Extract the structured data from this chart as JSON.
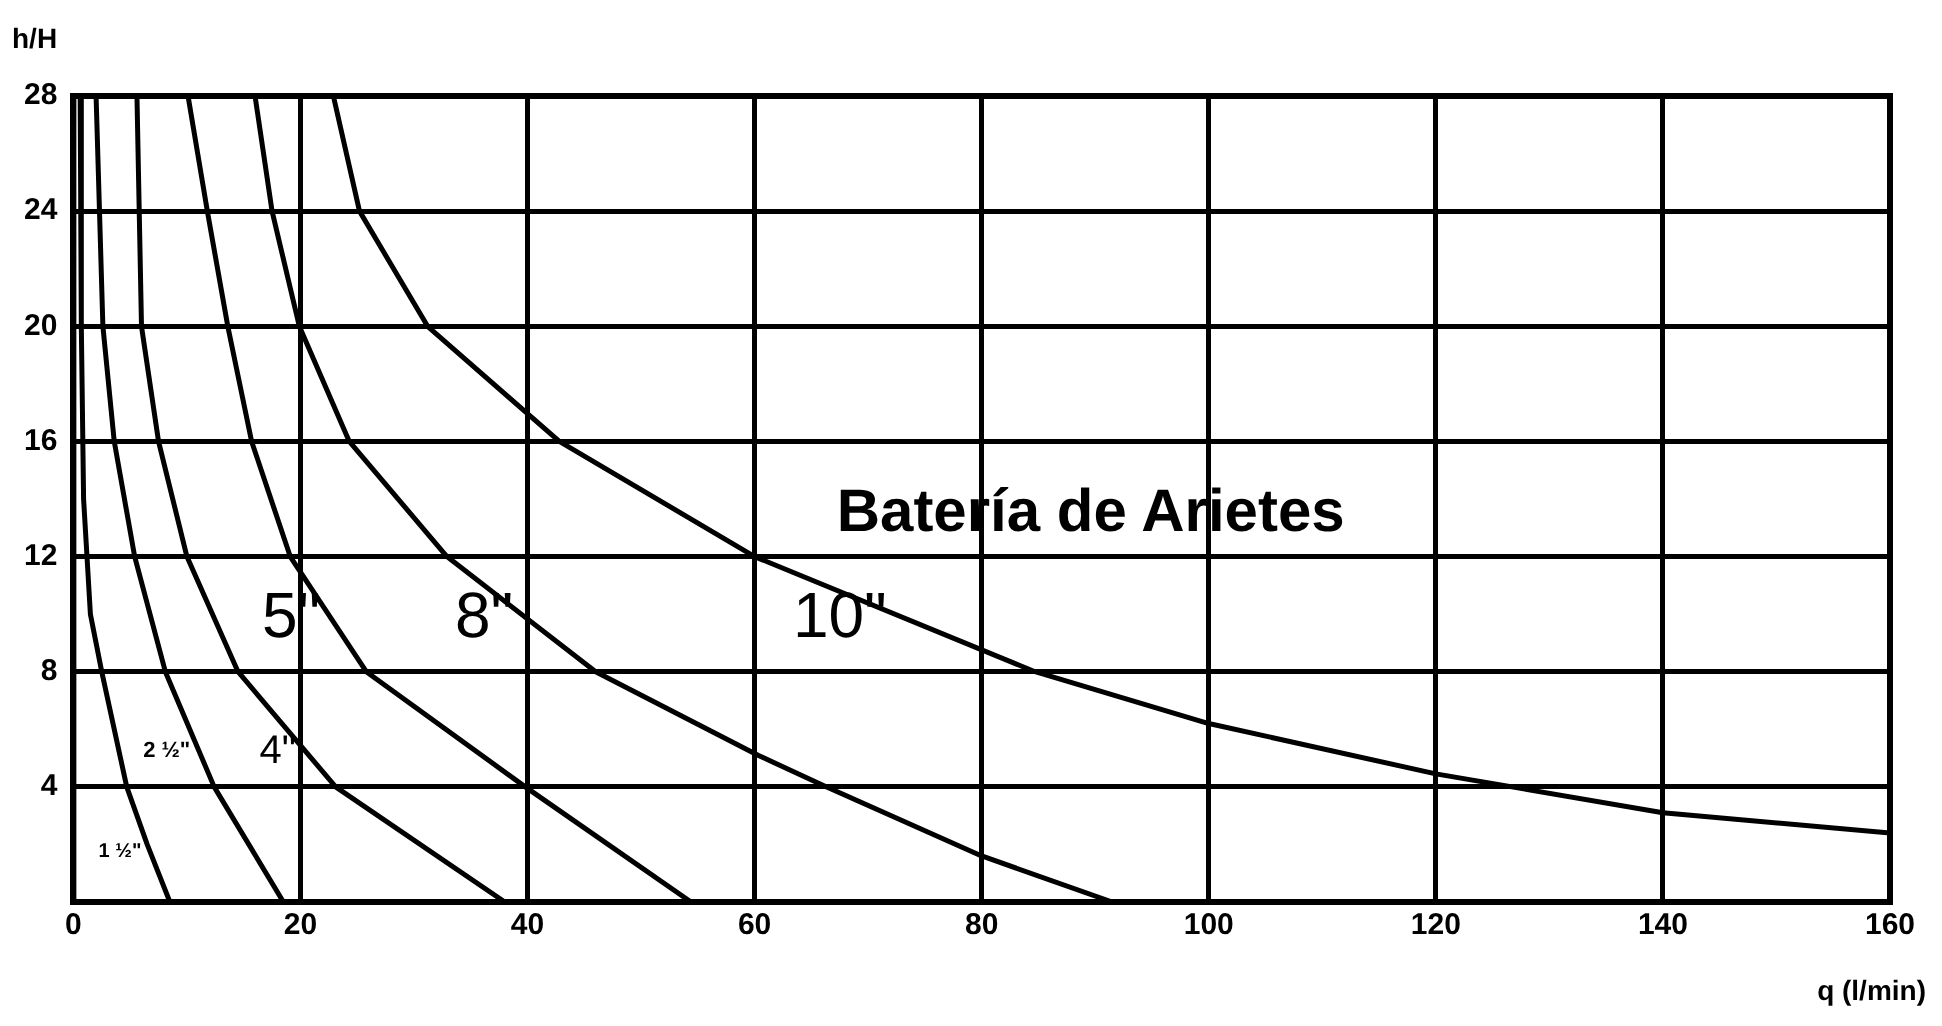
{
  "chart_data": {
    "type": "line",
    "title": "Batería de Arietes",
    "xlabel": "q (l/min)",
    "ylabel": "h/H",
    "xlim": [
      0,
      160
    ],
    "xticks": [
      0,
      20,
      40,
      60,
      80,
      100,
      120,
      140,
      160
    ],
    "ylim": [
      0,
      28
    ],
    "yticks": [
      4,
      8,
      12,
      16,
      20,
      24,
      28
    ],
    "grid": true,
    "legend": false,
    "marker": "none",
    "line_style": "solid",
    "series": [
      {
        "name": "1 ½\"",
        "color": "#000000",
        "x": [
          0.6,
          0.7,
          0.9,
          1.5,
          2.5,
          4.7,
          6.5,
          8.5
        ],
        "values": [
          28,
          20,
          14,
          10,
          8,
          4,
          2,
          0
        ]
      },
      {
        "name": "2 ½\"",
        "color": "#000000",
        "x": [
          2.0,
          2.6,
          3.6,
          5.4,
          8.1,
          12.4,
          18.5
        ],
        "values": [
          28,
          20,
          16,
          12,
          8,
          4,
          0
        ]
      },
      {
        "name": "4\"",
        "color": "#000000",
        "x": [
          5.6,
          6.0,
          7.5,
          10.0,
          14.5,
          23.1,
          38.0
        ],
        "values": [
          28,
          20,
          16,
          12,
          8,
          4,
          0
        ]
      },
      {
        "name": "5\"",
        "color": "#000000",
        "x": [
          10.1,
          11.8,
          13.6,
          15.7,
          19.1,
          25.8,
          39.8,
          54.4
        ],
        "values": [
          28,
          24,
          20,
          16,
          12,
          8,
          4,
          0
        ]
      },
      {
        "name": "8\"",
        "color": "#000000",
        "x": [
          16.0,
          17.5,
          19.9,
          24.3,
          32.9,
          46.0,
          60.3,
          66.3,
          80.0,
          91.5
        ],
        "values": [
          28,
          24,
          20,
          16,
          12,
          8,
          5.1,
          4,
          1.6,
          0
        ]
      },
      {
        "name": "10\"",
        "color": "#000000",
        "x": [
          22.9,
          25.2,
          31.2,
          42.8,
          60.0,
          84.7,
          100,
          120,
          140,
          160
        ],
        "values": [
          28,
          24,
          20,
          16,
          12,
          8,
          6.2,
          4.45,
          3.1,
          2.4
        ]
      }
    ]
  }
}
